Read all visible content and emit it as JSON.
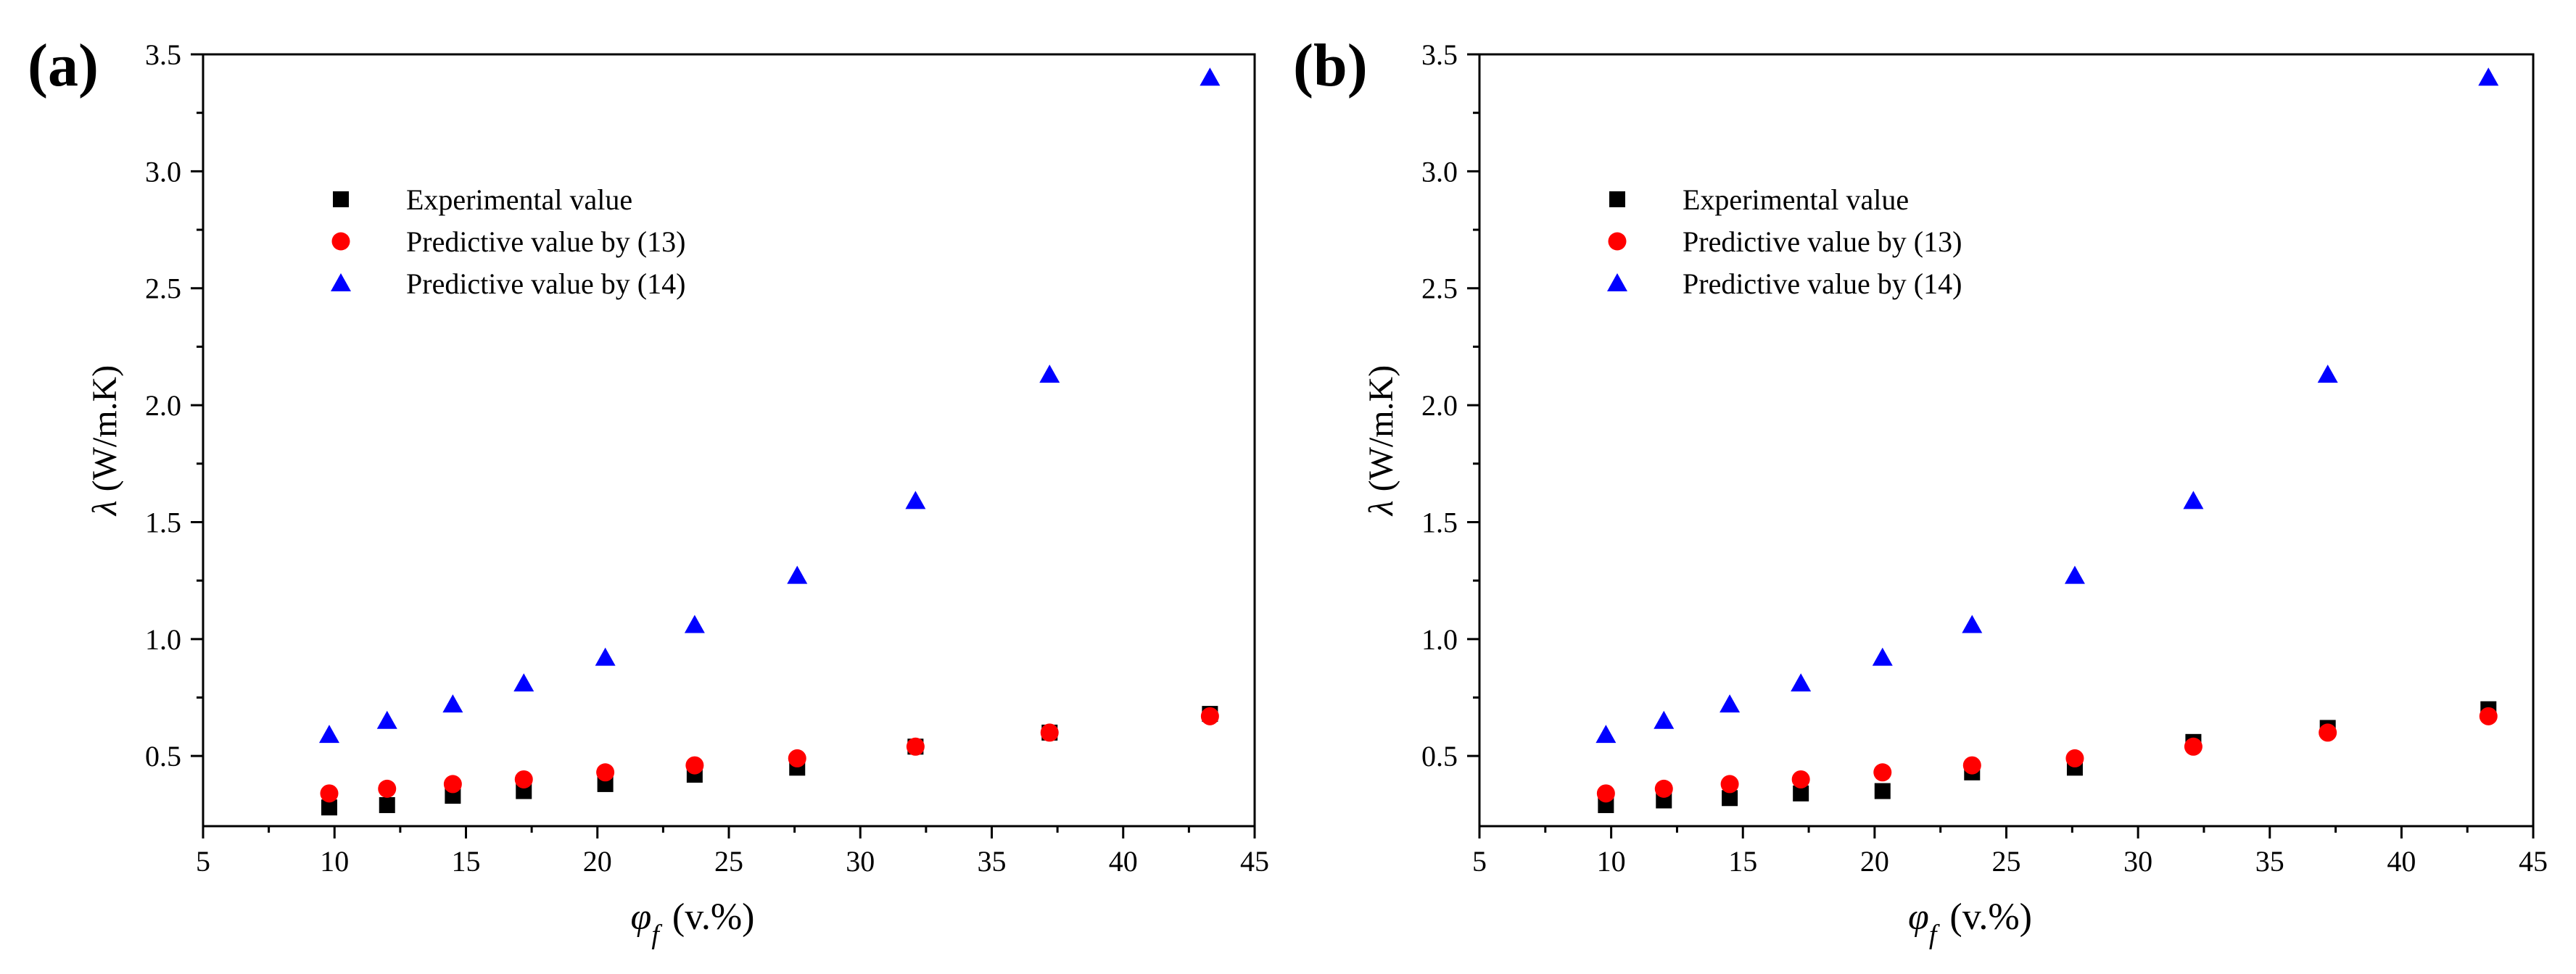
{
  "figure": {
    "panels": [
      "(a)",
      "(b)"
    ]
  },
  "chart_data": [
    {
      "type": "scatter",
      "panel_label": "(a)",
      "title": "",
      "xlabel": "v.%",
      "xlabel_symbol": "φ",
      "xlabel_subscript": "f",
      "ylabel": "λ (W/m.K)",
      "xlim": [
        5,
        45
      ],
      "ylim": [
        0.2,
        3.5
      ],
      "xticks": [
        5,
        10,
        15,
        20,
        25,
        30,
        35,
        40,
        45
      ],
      "xtick_labels": [
        "5",
        "10",
        "15",
        "20",
        "25",
        "30",
        "35",
        "40",
        "45"
      ],
      "yticks": [
        0.5,
        1.0,
        1.5,
        2.0,
        2.5,
        3.0,
        3.5
      ],
      "ytick_labels": [
        "0.5",
        "1.0",
        "1.5",
        "2.0",
        "2.5",
        "3.0",
        "3.5"
      ],
      "legend_position": "upper-left",
      "series": [
        {
          "name": "Experimental value",
          "marker": "square",
          "color": "#000000",
          "x": [
            9.8,
            12.0,
            14.5,
            17.2,
            20.3,
            23.7,
            27.6,
            32.1,
            37.2,
            43.3
          ],
          "y": [
            0.28,
            0.29,
            0.33,
            0.35,
            0.38,
            0.42,
            0.45,
            0.54,
            0.6,
            0.68
          ]
        },
        {
          "name": "Predictive value by (13)",
          "marker": "circle",
          "color": "#ff0000",
          "x": [
            9.8,
            12.0,
            14.5,
            17.2,
            20.3,
            23.7,
            27.6,
            32.1,
            37.2,
            43.3
          ],
          "y": [
            0.34,
            0.36,
            0.38,
            0.4,
            0.43,
            0.46,
            0.49,
            0.54,
            0.6,
            0.67
          ]
        },
        {
          "name": "Predictive value by (14)",
          "marker": "triangle",
          "color": "#0000ff",
          "x": [
            9.8,
            12.0,
            14.5,
            17.2,
            20.3,
            23.7,
            27.6,
            32.1,
            37.2,
            43.3
          ],
          "y": [
            0.59,
            0.65,
            0.72,
            0.81,
            0.92,
            1.06,
            1.27,
            1.59,
            2.13,
            3.4
          ]
        }
      ]
    },
    {
      "type": "scatter",
      "panel_label": "(b)",
      "title": "",
      "xlabel": "v.%",
      "xlabel_symbol": "φ",
      "xlabel_subscript": "f",
      "ylabel": "λ (W/m.K)",
      "xlim": [
        5,
        45
      ],
      "ylim": [
        0.2,
        3.5
      ],
      "xticks": [
        5,
        10,
        15,
        20,
        25,
        30,
        35,
        40,
        45
      ],
      "xtick_labels": [
        "5",
        "10",
        "15",
        "20",
        "25",
        "30",
        "35",
        "40",
        "45"
      ],
      "yticks": [
        0.5,
        1.0,
        1.5,
        2.0,
        2.5,
        3.0,
        3.5
      ],
      "ytick_labels": [
        "0.5",
        "1.0",
        "1.5",
        "2.0",
        "2.5",
        "3.0",
        "3.5"
      ],
      "legend_position": "upper-left",
      "series": [
        {
          "name": "Experimental value",
          "marker": "square",
          "color": "#000000",
          "x": [
            9.8,
            12.0,
            14.5,
            17.2,
            20.3,
            23.7,
            27.6,
            32.1,
            37.2,
            43.3
          ],
          "y": [
            0.29,
            0.31,
            0.32,
            0.34,
            0.35,
            0.43,
            0.45,
            0.56,
            0.62,
            0.7
          ]
        },
        {
          "name": "Predictive value by (13)",
          "marker": "circle",
          "color": "#ff0000",
          "x": [
            9.8,
            12.0,
            14.5,
            17.2,
            20.3,
            23.7,
            27.6,
            32.1,
            37.2,
            43.3
          ],
          "y": [
            0.34,
            0.36,
            0.38,
            0.4,
            0.43,
            0.46,
            0.49,
            0.54,
            0.6,
            0.67
          ]
        },
        {
          "name": "Predictive value by (14)",
          "marker": "triangle",
          "color": "#0000ff",
          "x": [
            9.8,
            12.0,
            14.5,
            17.2,
            20.3,
            23.7,
            27.6,
            32.1,
            37.2,
            43.3
          ],
          "y": [
            0.59,
            0.65,
            0.72,
            0.81,
            0.92,
            1.06,
            1.27,
            1.59,
            2.13,
            3.4
          ]
        }
      ]
    }
  ]
}
